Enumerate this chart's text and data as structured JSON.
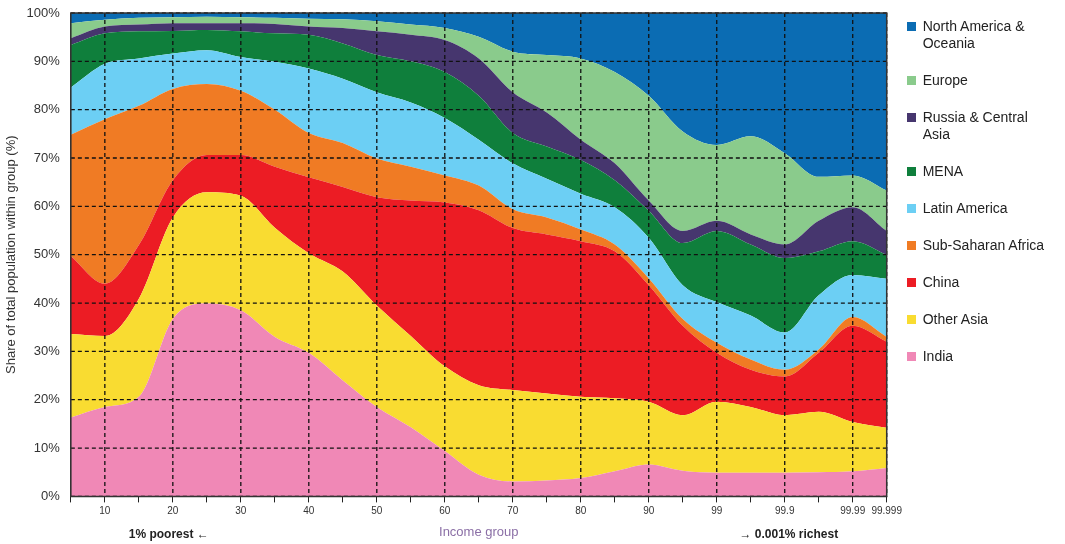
{
  "chart_data": {
    "type": "area",
    "stacked": true,
    "xlabel": "Income group",
    "ylabel": "Share of total population within group (%)",
    "categories": [
      null,
      "10",
      null,
      "20",
      null,
      "30",
      null,
      "40",
      null,
      "50",
      null,
      "60",
      null,
      "70",
      null,
      "80",
      null,
      "90",
      null,
      "99",
      null,
      "99.9",
      null,
      "99.99",
      "99.999"
    ],
    "ylim": [
      0,
      100
    ],
    "yticks": [
      {
        "value": 0,
        "label": "0%"
      },
      {
        "value": 10,
        "label": "10%"
      },
      {
        "value": 20,
        "label": "20%"
      },
      {
        "value": 30,
        "label": "30%"
      },
      {
        "value": 40,
        "label": "40%"
      },
      {
        "value": 50,
        "label": "50%"
      },
      {
        "value": 60,
        "label": "60%"
      },
      {
        "value": 70,
        "label": "70%"
      },
      {
        "value": 80,
        "label": "80%"
      },
      {
        "value": 90,
        "label": "90%"
      },
      {
        "value": 100,
        "label": "100%"
      }
    ],
    "grid": true,
    "legend": "right",
    "annotations": [
      "1% poorest ←",
      "→ 0.001% richest"
    ],
    "series": [
      {
        "name": "India",
        "color": "#f088b6",
        "values": [
          16.3,
          18.5,
          20.6,
          36.7,
          39.9,
          38.5,
          33,
          29.7,
          24,
          18.5,
          14.3,
          9.4,
          4.5,
          3.1,
          3.3,
          3.8,
          5.2,
          6.6,
          5.3,
          4.9,
          4.9,
          4.9,
          5,
          5.2,
          5.9
        ]
      },
      {
        "name": "Other Asia",
        "color": "#f9dc31",
        "values": [
          17.3,
          14.7,
          20.3,
          21,
          23,
          23.7,
          22.6,
          20.6,
          22.5,
          21,
          18.9,
          17.5,
          18.5,
          18.9,
          18,
          16.8,
          15.1,
          13,
          11.5,
          14.7,
          13.6,
          11.9,
          12.5,
          10.2,
          8.3
        ]
      },
      {
        "name": "China",
        "color": "#ec1c24",
        "values": [
          16.1,
          10.8,
          11.1,
          7.7,
          7.7,
          8.4,
          12.6,
          15.7,
          17.5,
          22.4,
          28,
          33.9,
          36.2,
          33.5,
          32.9,
          32.2,
          30.4,
          24.1,
          18.5,
          10.1,
          7.7,
          8,
          12.2,
          19.9,
          17.8
        ]
      },
      {
        "name": "Sub-Saharan Africa",
        "color": "#f07b24",
        "values": [
          25.1,
          34,
          28.8,
          18.9,
          14.7,
          13.3,
          11.8,
          9.2,
          9.1,
          8,
          7,
          5.6,
          5.1,
          3.9,
          3.5,
          2.4,
          1.4,
          1.4,
          1.4,
          2.1,
          2.1,
          1.4,
          0.7,
          1.8,
          1
        ]
      },
      {
        "name": "Latin America",
        "color": "#6ccff4",
        "values": [
          9.8,
          11.5,
          9.8,
          7.3,
          7,
          7,
          9.9,
          13.3,
          13.3,
          13.7,
          13.3,
          11.9,
          9.5,
          9.5,
          8,
          7.4,
          7.7,
          8.4,
          7,
          8.4,
          9.1,
          7.7,
          11.2,
          8.7,
          12
        ]
      },
      {
        "name": "MENA",
        "color": "#0f7f3c",
        "values": [
          8.8,
          6.3,
          5.6,
          4.7,
          4.2,
          5.3,
          5.9,
          7,
          7.3,
          7.7,
          8.5,
          9.5,
          9.1,
          6.3,
          6.7,
          7,
          5.6,
          5.6,
          8.7,
          14.7,
          14.7,
          15.4,
          9.1,
          7,
          5
        ]
      },
      {
        "name": "Russia & Central Asia",
        "color": "#46366e",
        "values": [
          1.4,
          1.4,
          1.4,
          1.6,
          1.4,
          1.7,
          1.9,
          1.7,
          3.2,
          4.9,
          5.5,
          6.6,
          7.7,
          8.4,
          7,
          4.2,
          3.5,
          2.1,
          2.5,
          2.1,
          2.1,
          2.8,
          6.3,
          7,
          4.9
        ]
      },
      {
        "name": "Europe",
        "color": "#8acb8c",
        "values": [
          3.1,
          1.4,
          1.4,
          1.2,
          1.3,
          1.2,
          1.3,
          1.6,
          1.8,
          2.1,
          2.1,
          2.5,
          4.5,
          8.4,
          11.9,
          16.8,
          18.9,
          21.7,
          20.6,
          15.7,
          20.3,
          18.9,
          9.1,
          6.6,
          8.4
        ]
      },
      {
        "name": "North America & Oceania",
        "color": "#0b6cb3",
        "values": [
          2.1,
          1.4,
          1,
          0.9,
          0.8,
          0.9,
          1,
          1.2,
          1.3,
          1.7,
          2.4,
          3.1,
          4.9,
          8,
          8.7,
          9.4,
          12.2,
          17.1,
          24.5,
          27.3,
          25.5,
          29,
          33.9,
          33.6,
          36.7
        ]
      }
    ]
  }
}
